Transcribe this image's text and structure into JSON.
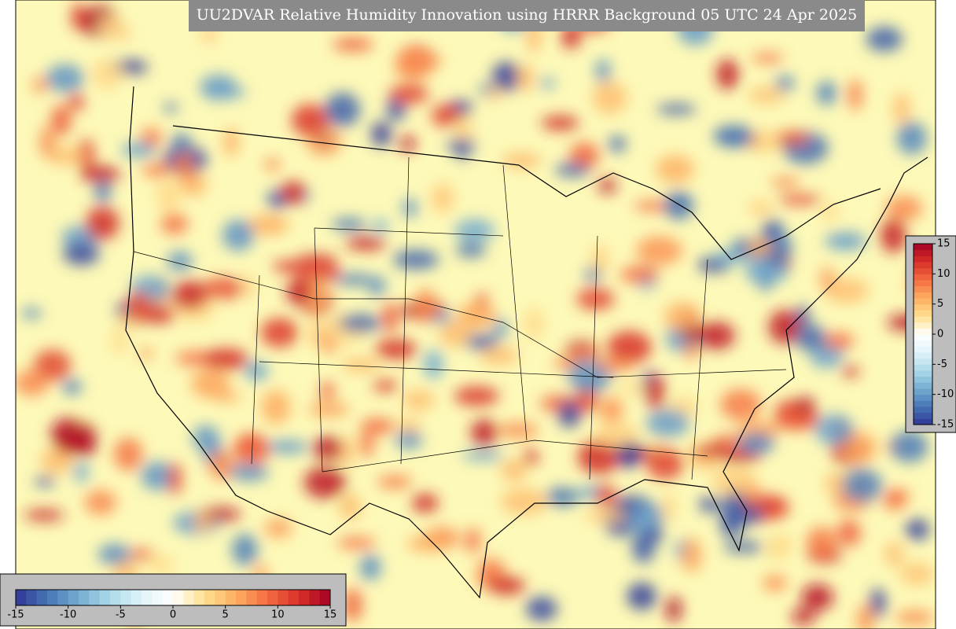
{
  "title": "UU2DVAR Relative Humidity Innovation using HRRR Background 05 UTC 24 Apr 2025",
  "colorbar": {
    "range": [
      -15,
      15
    ],
    "ticks": [
      -15,
      -10,
      -5,
      0,
      5,
      10,
      15
    ],
    "colors": [
      "#313695",
      "#4575b4",
      "#74add1",
      "#abd9e9",
      "#e0f3f8",
      "#ffffff",
      "#fee090",
      "#fdae61",
      "#f46d43",
      "#d73027",
      "#a50026"
    ]
  }
}
